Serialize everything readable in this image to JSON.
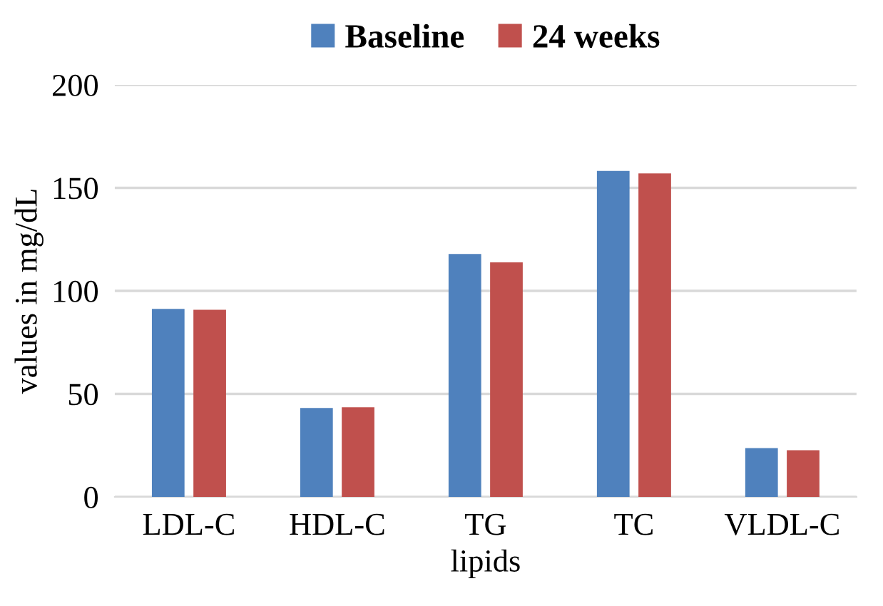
{
  "chart_data": {
    "type": "bar",
    "xlabel": "lipids",
    "ylabel": "values in mg/dL",
    "categories": [
      "LDL-C",
      "HDL-C",
      "TG",
      "TC",
      "VLDL-C"
    ],
    "series": [
      {
        "name": "Baseline",
        "color": "#4f81bd",
        "values": [
          91.3,
          43.2,
          117.9,
          158.2,
          23.7
        ]
      },
      {
        "name": "24 weeks",
        "color": "#c0504d",
        "values": [
          90.8,
          43.5,
          113.8,
          157,
          22.7
        ]
      }
    ],
    "ylim": [
      0,
      200
    ],
    "yticks": [
      0,
      50,
      100,
      150,
      200
    ],
    "grid": "y",
    "legend": "top"
  }
}
